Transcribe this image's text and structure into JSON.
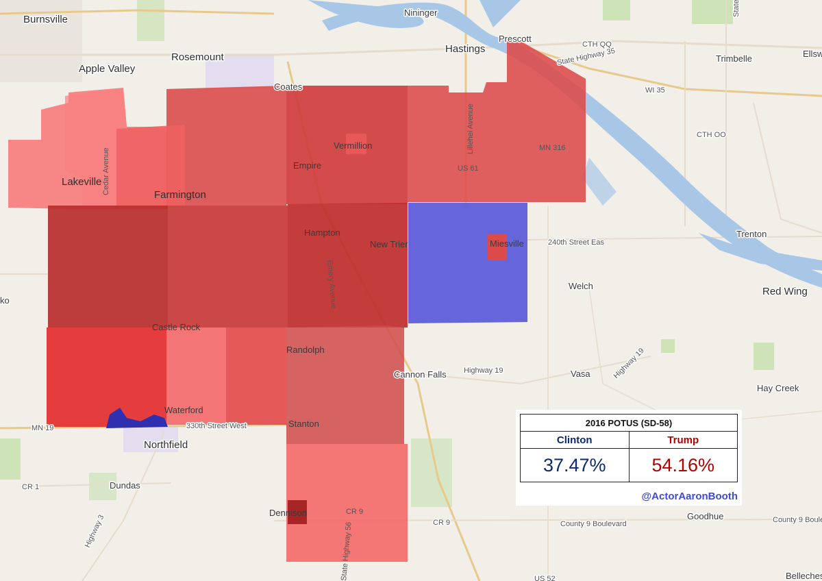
{
  "map": {
    "colors": {
      "background": "#f2efe9",
      "water": "#a8c7e6",
      "park": "#cfe3b8",
      "urban": "#e6e1dc",
      "major_road": "#e8c98c",
      "minor_road": "#ffffff",
      "red_light": "#f77070",
      "red_mid": "#e85050",
      "red_dark": "#c83030",
      "blue": "#5a5ad8"
    },
    "labels": {
      "burnsville": "Burnsville",
      "apple_valley": "Apple Valley",
      "rosemount": "Rosemount",
      "nininger": "Nininger",
      "hastings": "Hastings",
      "prescott": "Prescott",
      "coates": "Coates",
      "lakeville": "Lakeville",
      "farmington": "Farmington",
      "vermillion": "Vermillion",
      "empire": "Empire",
      "hampton": "Hampton",
      "new_trier": "New Trier",
      "miesville": "Miesville",
      "castle_rock": "Castle Rock",
      "randolph": "Randolph",
      "cannon_falls": "Cannon Falls",
      "waterford": "Waterford",
      "stanton": "Stanton",
      "northfield": "Northfield",
      "dundas": "Dundas",
      "dennison": "Dennison",
      "trimbelle": "Trimbelle",
      "ellsworth": "Ellsw",
      "trenton": "Trenton",
      "red_wing": "Red Wing",
      "welch": "Welch",
      "vasa": "Vasa",
      "hay_creek": "Hay Creek",
      "goodhue": "Goodhue",
      "belleche": "Belleches",
      "ko": "ko"
    },
    "roads": {
      "cedar_avenue": "Cedar Avenue",
      "lillehei_avenue": "Lillehei Avenue",
      "emery_avenue": "Emery Avenue",
      "state_highway_56": "State Highway 56",
      "state_highway_35": "State Highway 35",
      "cth_qq": "CTH QQ",
      "wi_35": "WI 35",
      "cth_oo": "CTH OO",
      "us_61": "US 61",
      "mn_316": "MN 316",
      "240th_street": "240th Street Eas",
      "highway_19": "Highway 19",
      "highway_19b": "Highway 19",
      "mn_19": "MN 19",
      "330th_street": "330th Street West",
      "cr_1": "CR 1",
      "highway_3": "Highway 3",
      "cr_9": "CR 9",
      "cr_9b": "CR 9",
      "county_9_boulevard": "County 9 Boulevard",
      "county_9_boulevard_b": "County 9 Boulevar",
      "us_52": "US 52",
      "state_hwy": "State Hwy"
    }
  },
  "results_box": {
    "title": "2016 POTUS (SD-58)",
    "candidate_dem": "Clinton",
    "candidate_rep": "Trump",
    "pct_dem": "37.47%",
    "pct_rep": "54.16%",
    "credit": "@ActorAaronBooth"
  }
}
